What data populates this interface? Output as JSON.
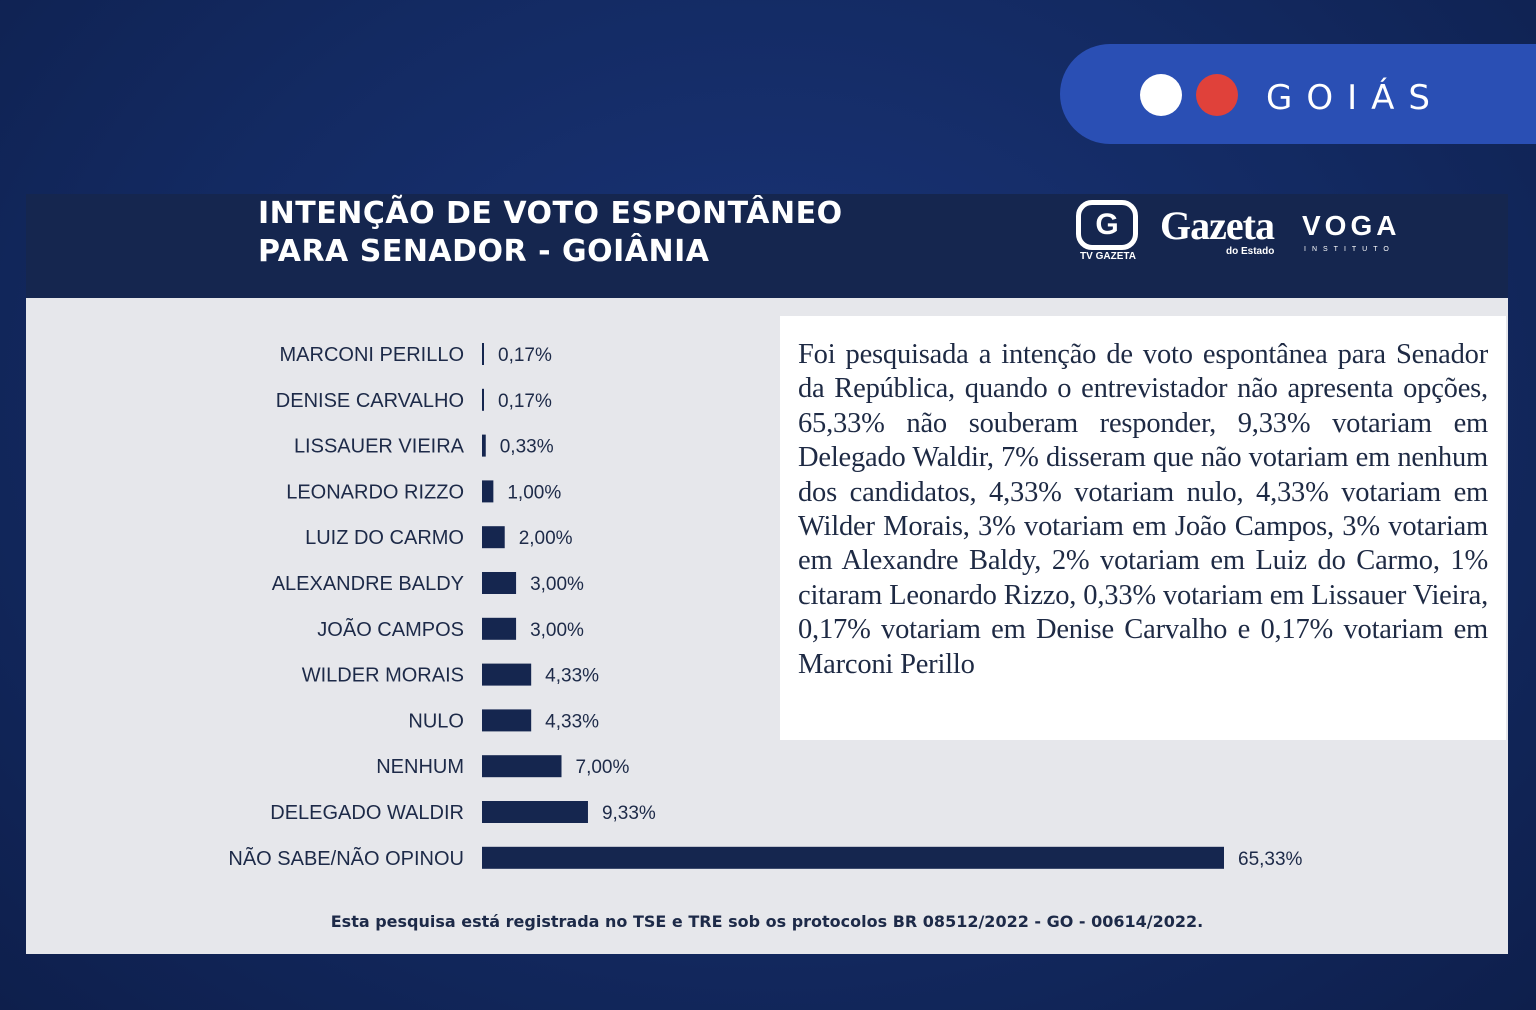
{
  "region": {
    "label": "GOIÁS",
    "colors": {
      "pill": "#2a4fb4",
      "dot_white": "#ffffff",
      "dot_red": "#e0413a"
    }
  },
  "header": {
    "title_line1": "INTENÇÃO DE VOTO ESPONTÂNEO",
    "title_line2": "PARA SENADOR - GOIÂNIA",
    "logos": {
      "tv_gazeta_mark": "G",
      "tv_gazeta_label": "TV GAZETA",
      "gazeta": "Gazeta",
      "gazeta_sub": "do Estado",
      "voga": "VOGA",
      "voga_sub": "INSTITUTO"
    }
  },
  "chart_data": {
    "type": "bar",
    "orientation": "horizontal",
    "categories": [
      "MARCONI PERILLO",
      "DENISE CARVALHO",
      "LISSAUER VIEIRA",
      "LEONARDO RIZZO",
      "LUIZ DO CARMO",
      "ALEXANDRE BALDY",
      "JOÃO CAMPOS",
      "WILDER MORAIS",
      "NULO",
      "NENHUM",
      "DELEGADO WALDIR",
      "NÃO SABE/NÃO OPINOU"
    ],
    "values": [
      0.17,
      0.17,
      0.33,
      1.0,
      2.0,
      3.0,
      3.0,
      4.33,
      4.33,
      7.0,
      9.33,
      65.33
    ],
    "labels": [
      "0,17%",
      "0,17%",
      "0,33%",
      "1,00%",
      "2,00%",
      "3,00%",
      "3,00%",
      "4,33%",
      "4,33%",
      "7,00%",
      "9,33%",
      "65,33%"
    ],
    "bar_color": "#15264f",
    "xlim": [
      0,
      65.33
    ],
    "grid": false
  },
  "note": {
    "text": "Foi pesquisada a intenção de voto espontânea para Senador da República, quando o entrevistador não apresenta opções, 65,33% não souberam responder, 9,33% votariam em Delegado Waldir, 7% disseram que não votariam em nenhum dos candidatos, 4,33% votariam nulo, 4,33% votariam em Wilder Morais, 3% votariam em João Campos, 3% votariam em Alexandre Baldy, 2% votariam em Luiz do Carmo, 1% citaram Leonardo Rizzo, 0,33% votariam em Lissauer Vieira, 0,17% votariam em Denise Carvalho e 0,17% votariam em Marconi Perillo"
  },
  "footnote": "Esta pesquisa está registrada no TSE e TRE sob os protocolos BR 08512/2022 - GO - 00614/2022."
}
